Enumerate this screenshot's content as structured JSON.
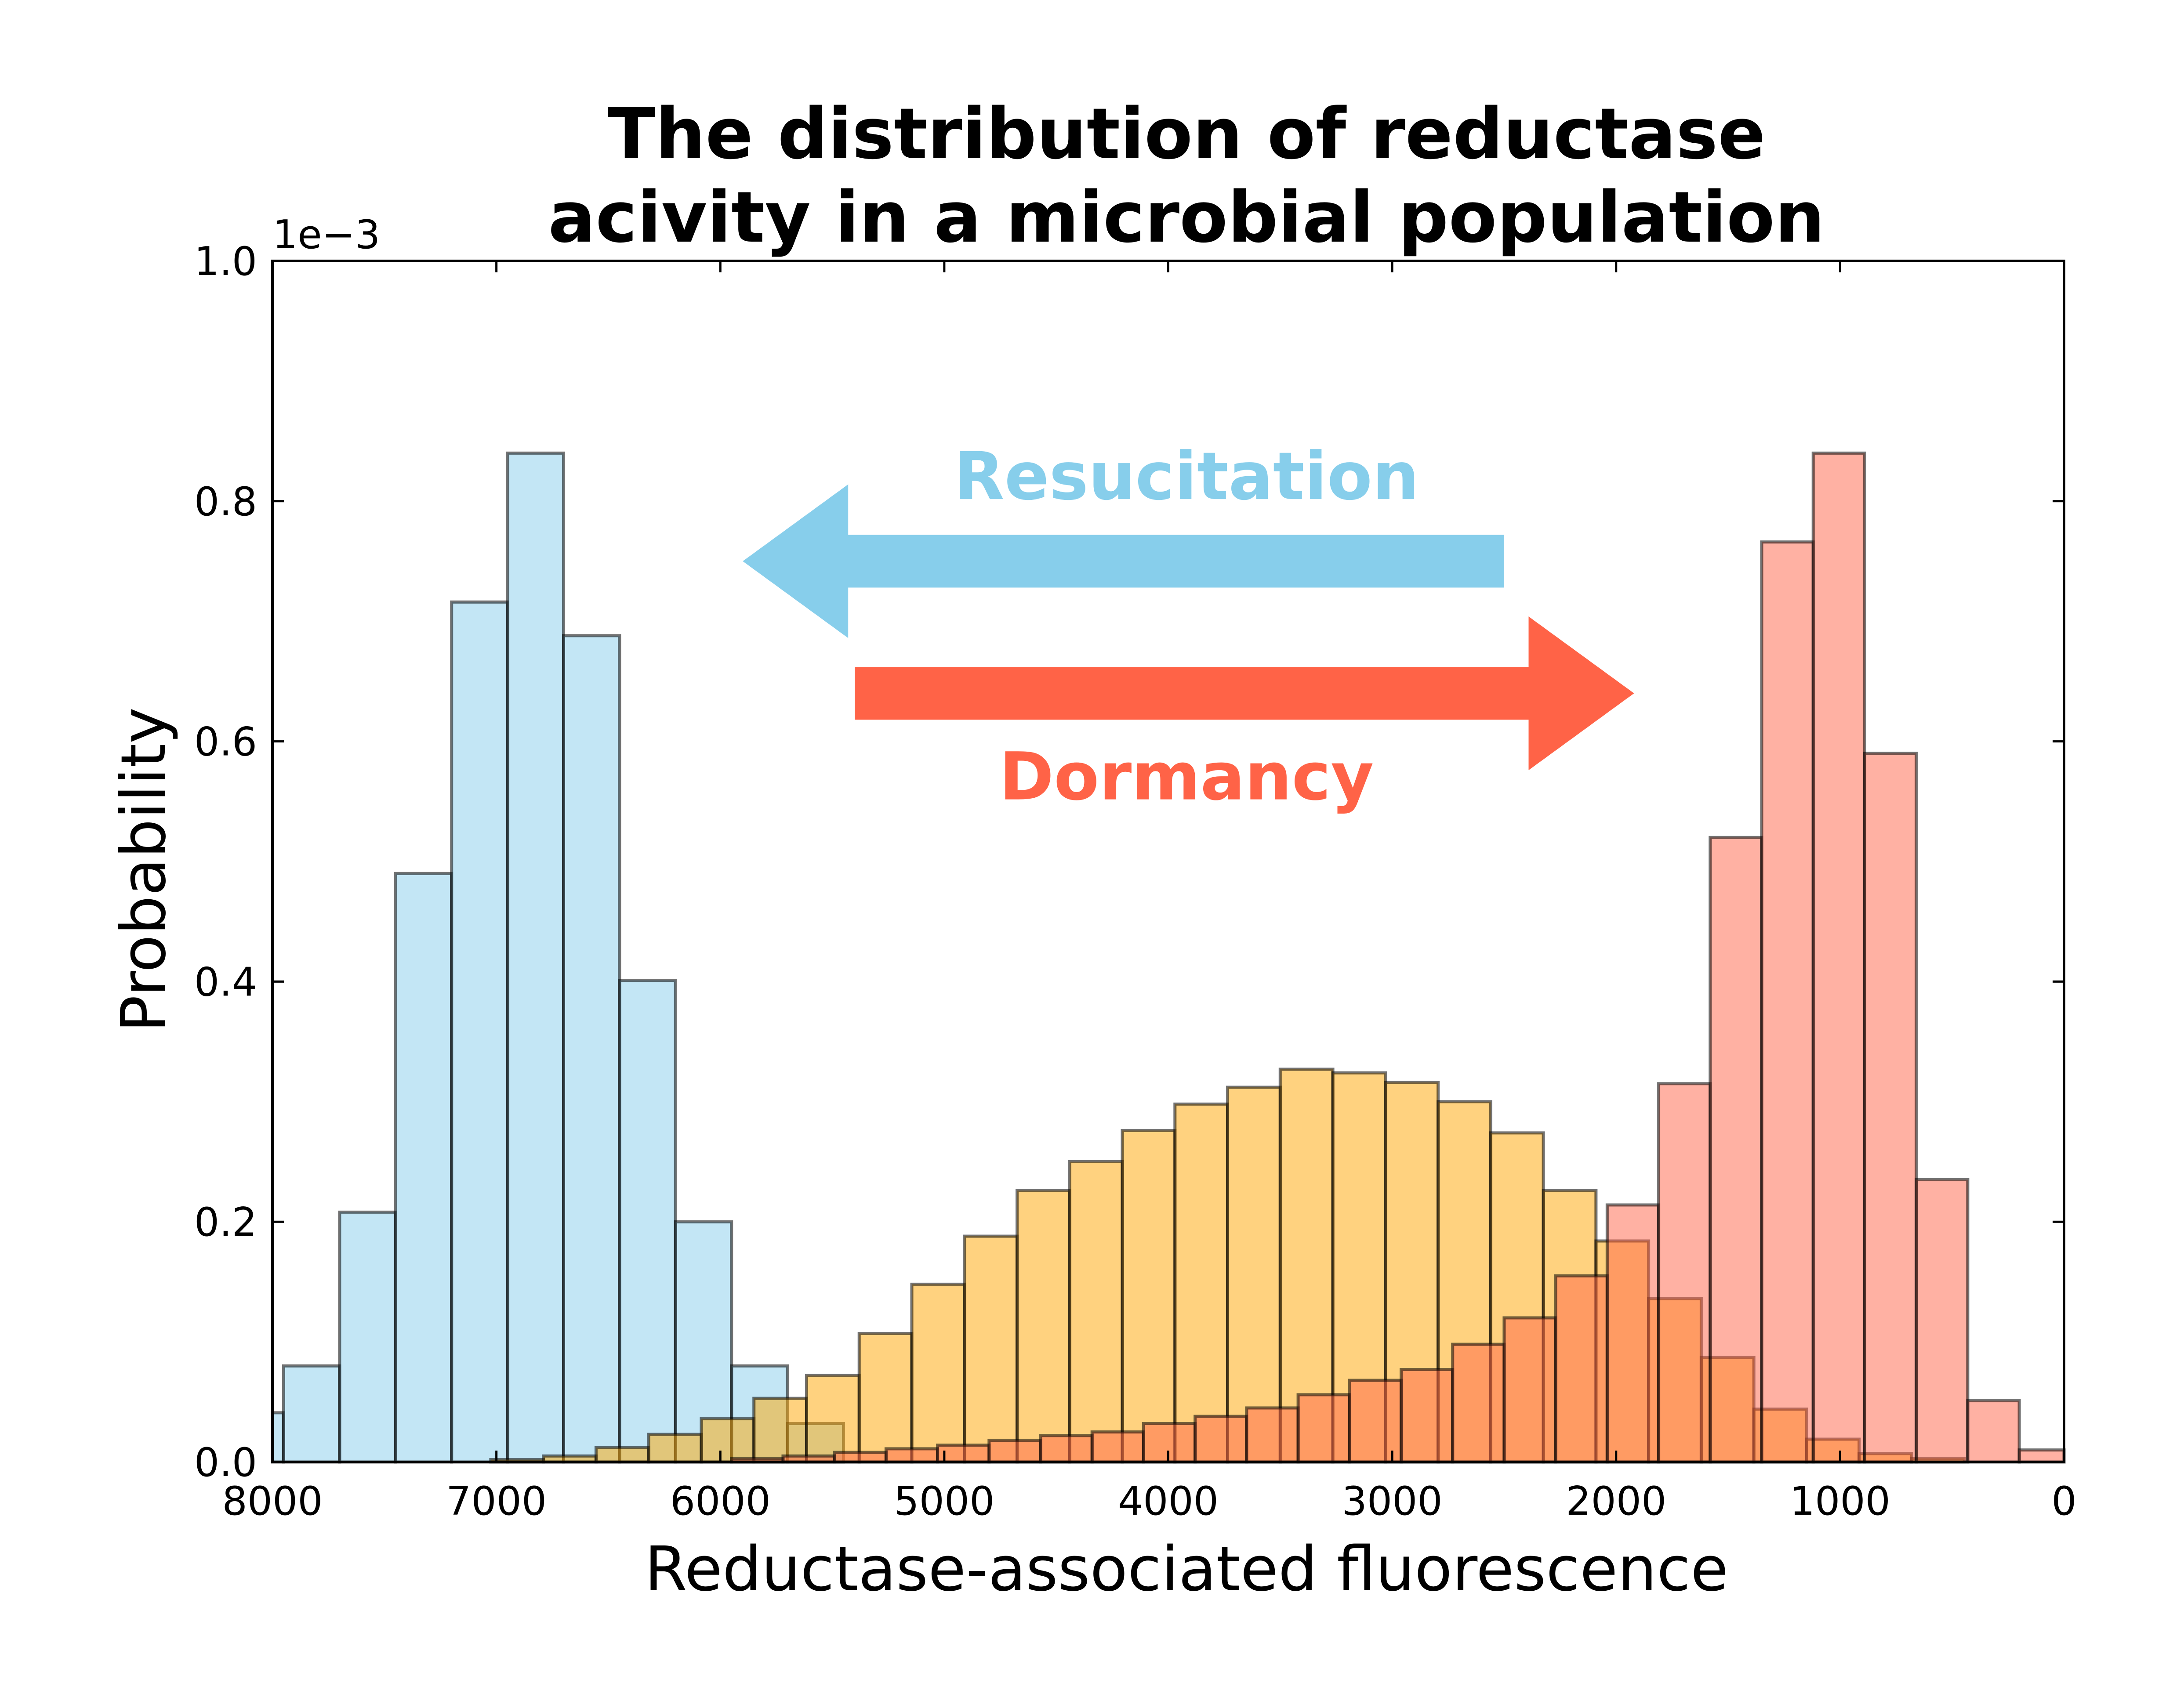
{
  "chart_data": {
    "type": "bar",
    "title": "The distribution of reductase\nacivity in a microbial population",
    "xlabel": "Reductase-associated fluorescence",
    "ylabel": "Probability",
    "y_scale_label": "1e−3",
    "xlim": [
      8000,
      0
    ],
    "x_inverted": true,
    "ylim": [
      0,
      0.001
    ],
    "xticks": [
      8000,
      7000,
      6000,
      5000,
      4000,
      3000,
      2000,
      1000,
      0
    ],
    "xtick_labels": [
      "8000",
      "7000",
      "6000",
      "5000",
      "4000",
      "3000",
      "2000",
      "1000",
      "0"
    ],
    "yticks": [
      0.0,
      0.0002,
      0.0004,
      0.0006,
      0.0008,
      0.001
    ],
    "ytick_labels": [
      "0.0",
      "0.2",
      "0.4",
      "0.6",
      "0.8",
      "1.0"
    ],
    "grid": false,
    "legend": "none",
    "series": [
      {
        "color": "#87ceeb",
        "bin_width": 250,
        "bins": [
          [
            7950,
            4.1e-05
          ],
          [
            7700,
            8e-05
          ],
          [
            7450,
            0.000208
          ],
          [
            7200,
            0.00049
          ],
          [
            6950,
            0.000716
          ],
          [
            6700,
            0.00084
          ],
          [
            6450,
            0.000688
          ],
          [
            6200,
            0.000401
          ],
          [
            5950,
            0.0002
          ],
          [
            5700,
            8e-05
          ],
          [
            5450,
            3.2e-05
          ]
        ]
      },
      {
        "color": "#ffa500",
        "bin_width": 235,
        "bins": [
          [
            6790,
            2e-06
          ],
          [
            6555,
            5e-06
          ],
          [
            6320,
            1.2e-05
          ],
          [
            6085,
            2.3e-05
          ],
          [
            5850,
            3.6e-05
          ],
          [
            5615,
            5.3e-05
          ],
          [
            5380,
            7.2e-05
          ],
          [
            5145,
            0.000107
          ],
          [
            4910,
            0.000148
          ],
          [
            4675,
            0.000188
          ],
          [
            4440,
            0.000226
          ],
          [
            4205,
            0.00025
          ],
          [
            3970,
            0.000276
          ],
          [
            3735,
            0.000298
          ],
          [
            3500,
            0.000312
          ],
          [
            3265,
            0.000327
          ],
          [
            3030,
            0.000324
          ],
          [
            2795,
            0.000316
          ],
          [
            2560,
            0.0003
          ],
          [
            2325,
            0.000274
          ],
          [
            2090,
            0.000226
          ],
          [
            1855,
            0.000184
          ],
          [
            1620,
            0.000136
          ],
          [
            1385,
            8.7e-05
          ],
          [
            1150,
            4.4e-05
          ],
          [
            915,
            1.9e-05
          ],
          [
            680,
            7e-06
          ],
          [
            445,
            3e-06
          ]
        ]
      },
      {
        "color": "#ff6347",
        "bin_width": 230,
        "bins": [
          [
            5720,
            3e-06
          ],
          [
            5490,
            5e-06
          ],
          [
            5260,
            8e-06
          ],
          [
            5030,
            1.1e-05
          ],
          [
            4800,
            1.4e-05
          ],
          [
            4570,
            1.8e-05
          ],
          [
            4340,
            2.2e-05
          ],
          [
            4110,
            2.5e-05
          ],
          [
            3880,
            3.2e-05
          ],
          [
            3650,
            3.8e-05
          ],
          [
            3420,
            4.5e-05
          ],
          [
            3190,
            5.6e-05
          ],
          [
            2960,
            6.8e-05
          ],
          [
            2730,
            7.7e-05
          ],
          [
            2500,
            9.8e-05
          ],
          [
            2270,
            0.00012
          ],
          [
            2040,
            0.000155
          ],
          [
            1810,
            0.000214
          ],
          [
            1580,
            0.000315
          ],
          [
            1350,
            0.00052
          ],
          [
            1120,
            0.000766
          ],
          [
            890,
            0.00084
          ],
          [
            660,
            0.00059
          ],
          [
            430,
            0.000235
          ],
          [
            200,
            5.1e-05
          ],
          [
            -30,
            1e-05
          ]
        ]
      }
    ],
    "annotations": [
      {
        "text": "Resucitation",
        "color": "#87ceeb",
        "arrow_from": 2500,
        "arrow_to": 5900,
        "arrow_y": 0.00075,
        "text_y": 0.00082
      },
      {
        "text": "Dormancy",
        "color": "#ff6347",
        "arrow_from": 5400,
        "arrow_to": 1920,
        "arrow_y": 0.00064,
        "text_y": 0.00057
      }
    ]
  }
}
